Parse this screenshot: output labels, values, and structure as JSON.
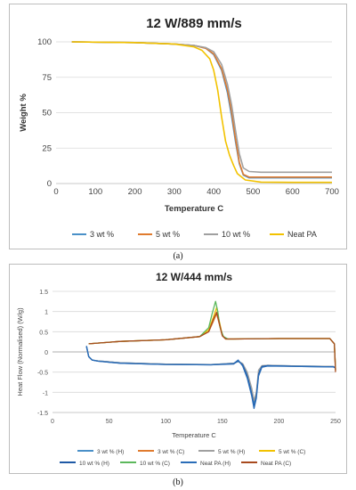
{
  "figure": {
    "label_a": "(a)",
    "label_b": "(b)"
  },
  "chart_data": [
    {
      "type": "line",
      "title": "12 W/889 mm/s",
      "xlabel": "Temperature C",
      "ylabel": "Weight %",
      "xlim": [
        0,
        700
      ],
      "ylim": [
        0,
        100
      ],
      "xticks": [
        0,
        100,
        200,
        300,
        400,
        500,
        600,
        700
      ],
      "yticks": [
        0,
        25,
        50,
        75,
        100
      ],
      "grid": "horizontal",
      "legend": "bottom",
      "series": [
        {
          "name": "3 wt %",
          "color": "#4a90c8",
          "x": [
            40,
            200,
            300,
            350,
            380,
            400,
            420,
            435,
            445,
            455,
            465,
            475,
            490,
            520,
            600,
            700
          ],
          "y": [
            100,
            99.5,
            98.5,
            97.5,
            95.5,
            91,
            80,
            64,
            48,
            30,
            14,
            6,
            4,
            4,
            4,
            4
          ]
        },
        {
          "name": "5 wt %",
          "color": "#e07b2e",
          "x": [
            40,
            200,
            300,
            350,
            380,
            400,
            420,
            435,
            445,
            455,
            465,
            475,
            490,
            520,
            600,
            700
          ],
          "y": [
            100,
            99.5,
            98.5,
            97.5,
            95.5,
            91.5,
            81,
            66,
            51,
            32,
            15,
            6.5,
            4.5,
            4.5,
            4.5,
            4.5
          ]
        },
        {
          "name": "10 wt %",
          "color": "#a0a0a0",
          "x": [
            40,
            200,
            300,
            350,
            380,
            400,
            420,
            435,
            445,
            455,
            465,
            475,
            490,
            520,
            600,
            700
          ],
          "y": [
            100,
            99.5,
            98.5,
            97.5,
            96,
            93,
            84,
            70,
            56,
            38,
            21,
            11,
            8.5,
            8,
            8,
            8
          ]
        },
        {
          "name": "Neat PA",
          "color": "#f2c200",
          "x": [
            40,
            200,
            300,
            350,
            370,
            390,
            400,
            410,
            420,
            430,
            440,
            450,
            460,
            480,
            520,
            600,
            700
          ],
          "y": [
            100,
            99.5,
            98.5,
            96.5,
            94,
            88,
            80,
            66,
            47,
            30,
            20,
            13,
            7,
            2.5,
            1,
            0.8,
            0.8
          ]
        }
      ]
    },
    {
      "type": "line",
      "title": "12 W/444 mm/s",
      "xlabel": "Temperature  C",
      "ylabel": "Heat Flow (Normalised) (W/g)",
      "xlim": [
        0,
        250
      ],
      "ylim": [
        -1.5,
        1.5
      ],
      "xticks": [
        0,
        50,
        100,
        150,
        200,
        250
      ],
      "yticks": [
        1.5,
        1,
        0.5,
        0,
        -0.5,
        -1,
        -1.5
      ],
      "grid": "horizontal",
      "legend": "bottom",
      "series": [
        {
          "name": "3 wt % (H)",
          "color": "#4a90c8",
          "x": [
            30,
            32,
            35,
            40,
            60,
            100,
            140,
            160,
            164,
            168,
            172,
            176,
            178,
            180,
            182,
            185,
            190,
            220,
            248,
            250
          ],
          "y": [
            0.12,
            -0.12,
            -0.2,
            -0.22,
            -0.27,
            -0.3,
            -0.31,
            -0.28,
            -0.24,
            -0.3,
            -0.55,
            -0.95,
            -1.25,
            -1.05,
            -0.5,
            -0.35,
            -0.33,
            -0.35,
            -0.36,
            -0.38
          ]
        },
        {
          "name": "3 wt % (C)",
          "color": "#e07b2e",
          "x": [
            32,
            60,
            100,
            130,
            138,
            142,
            145,
            147,
            150,
            153,
            160,
            200,
            245,
            249,
            250
          ],
          "y": [
            0.2,
            0.26,
            0.3,
            0.38,
            0.5,
            0.75,
            0.95,
            0.72,
            0.4,
            0.32,
            0.32,
            0.33,
            0.33,
            0.2,
            -0.45
          ]
        },
        {
          "name": "5 wt % (H)",
          "color": "#a0a0a0",
          "x": [
            30,
            32,
            35,
            40,
            60,
            100,
            140,
            160,
            164,
            168,
            172,
            176,
            178,
            180,
            182,
            185,
            190,
            220,
            248,
            250
          ],
          "y": [
            0.13,
            -0.12,
            -0.2,
            -0.22,
            -0.27,
            -0.3,
            -0.31,
            -0.28,
            -0.23,
            -0.29,
            -0.5,
            -0.9,
            -1.2,
            -1.0,
            -0.45,
            -0.34,
            -0.33,
            -0.35,
            -0.36,
            -0.38
          ]
        },
        {
          "name": "5 wt % (C)",
          "color": "#f2c200",
          "x": [
            32,
            60,
            100,
            130,
            138,
            142,
            145,
            147,
            150,
            153,
            160,
            200,
            245,
            249,
            250
          ],
          "y": [
            0.2,
            0.26,
            0.3,
            0.38,
            0.55,
            0.85,
            1.1,
            0.8,
            0.42,
            0.32,
            0.32,
            0.33,
            0.33,
            0.2,
            -0.45
          ]
        },
        {
          "name": "10 wt % (H)",
          "color": "#1f5aa6",
          "x": [
            30,
            32,
            35,
            40,
            60,
            100,
            140,
            160,
            164,
            168,
            172,
            176,
            178,
            180,
            182,
            185,
            190,
            220,
            248,
            250
          ],
          "y": [
            0.14,
            -0.12,
            -0.2,
            -0.23,
            -0.28,
            -0.31,
            -0.32,
            -0.3,
            -0.22,
            -0.32,
            -0.6,
            -1.05,
            -1.35,
            -1.1,
            -0.55,
            -0.36,
            -0.34,
            -0.36,
            -0.37,
            -0.4
          ]
        },
        {
          "name": "10 wt % (C)",
          "color": "#5cb85c",
          "x": [
            32,
            60,
            100,
            130,
            138,
            141,
            144,
            146,
            148,
            151,
            155,
            160,
            200,
            245,
            249,
            250
          ],
          "y": [
            0.2,
            0.26,
            0.3,
            0.38,
            0.6,
            0.95,
            1.25,
            1.0,
            0.6,
            0.38,
            0.32,
            0.32,
            0.33,
            0.33,
            0.2,
            -0.45
          ]
        },
        {
          "name": "Neat PA (H)",
          "color": "#2a6db8",
          "x": [
            30,
            32,
            35,
            40,
            60,
            100,
            140,
            160,
            164,
            168,
            172,
            176,
            178,
            180,
            182,
            185,
            190,
            220,
            248,
            250
          ],
          "y": [
            0.15,
            -0.12,
            -0.2,
            -0.23,
            -0.28,
            -0.31,
            -0.32,
            -0.29,
            -0.2,
            -0.35,
            -0.65,
            -1.1,
            -1.4,
            -1.15,
            -0.6,
            -0.38,
            -0.35,
            -0.36,
            -0.37,
            -0.4
          ]
        },
        {
          "name": "Neat PA (C)",
          "color": "#a84a1e",
          "x": [
            32,
            60,
            100,
            130,
            138,
            142,
            145,
            147,
            150,
            153,
            160,
            200,
            245,
            249,
            250
          ],
          "y": [
            0.2,
            0.26,
            0.3,
            0.38,
            0.5,
            0.8,
            0.98,
            0.75,
            0.4,
            0.32,
            0.32,
            0.33,
            0.33,
            0.2,
            -0.5
          ]
        }
      ]
    }
  ]
}
